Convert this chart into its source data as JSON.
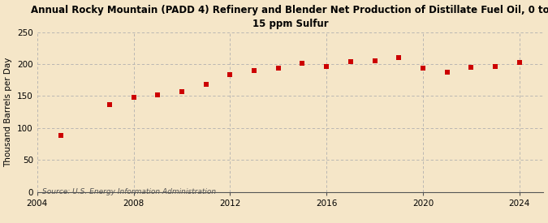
{
  "title_line1": "Annual Rocky Mountain (PADD 4) Refinery and Blender Net Production of Distillate Fuel Oil, 0 to",
  "title_line2": "15 ppm Sulfur",
  "ylabel": "Thousand Barrels per Day",
  "source": "Source: U.S. Energy Information Administration",
  "background_color": "#f5e6c8",
  "plot_background_color": "#f5e6c8",
  "marker_color": "#cc0000",
  "marker": "s",
  "marker_size": 4,
  "years": [
    2005,
    2007,
    2008,
    2009,
    2010,
    2011,
    2012,
    2013,
    2014,
    2015,
    2016,
    2017,
    2018,
    2019,
    2020,
    2021,
    2022,
    2023,
    2024
  ],
  "values": [
    88,
    136,
    148,
    152,
    157,
    168,
    184,
    190,
    193,
    201,
    196,
    204,
    205,
    210,
    193,
    187,
    195,
    196,
    202
  ],
  "xlim": [
    2004,
    2025
  ],
  "ylim": [
    0,
    250
  ],
  "yticks": [
    0,
    50,
    100,
    150,
    200,
    250
  ],
  "xticks": [
    2004,
    2008,
    2012,
    2016,
    2020,
    2024
  ],
  "grid_color": "#b0b0b0",
  "title_fontsize": 8.5,
  "label_fontsize": 7.5,
  "tick_fontsize": 7.5,
  "source_fontsize": 6.5
}
